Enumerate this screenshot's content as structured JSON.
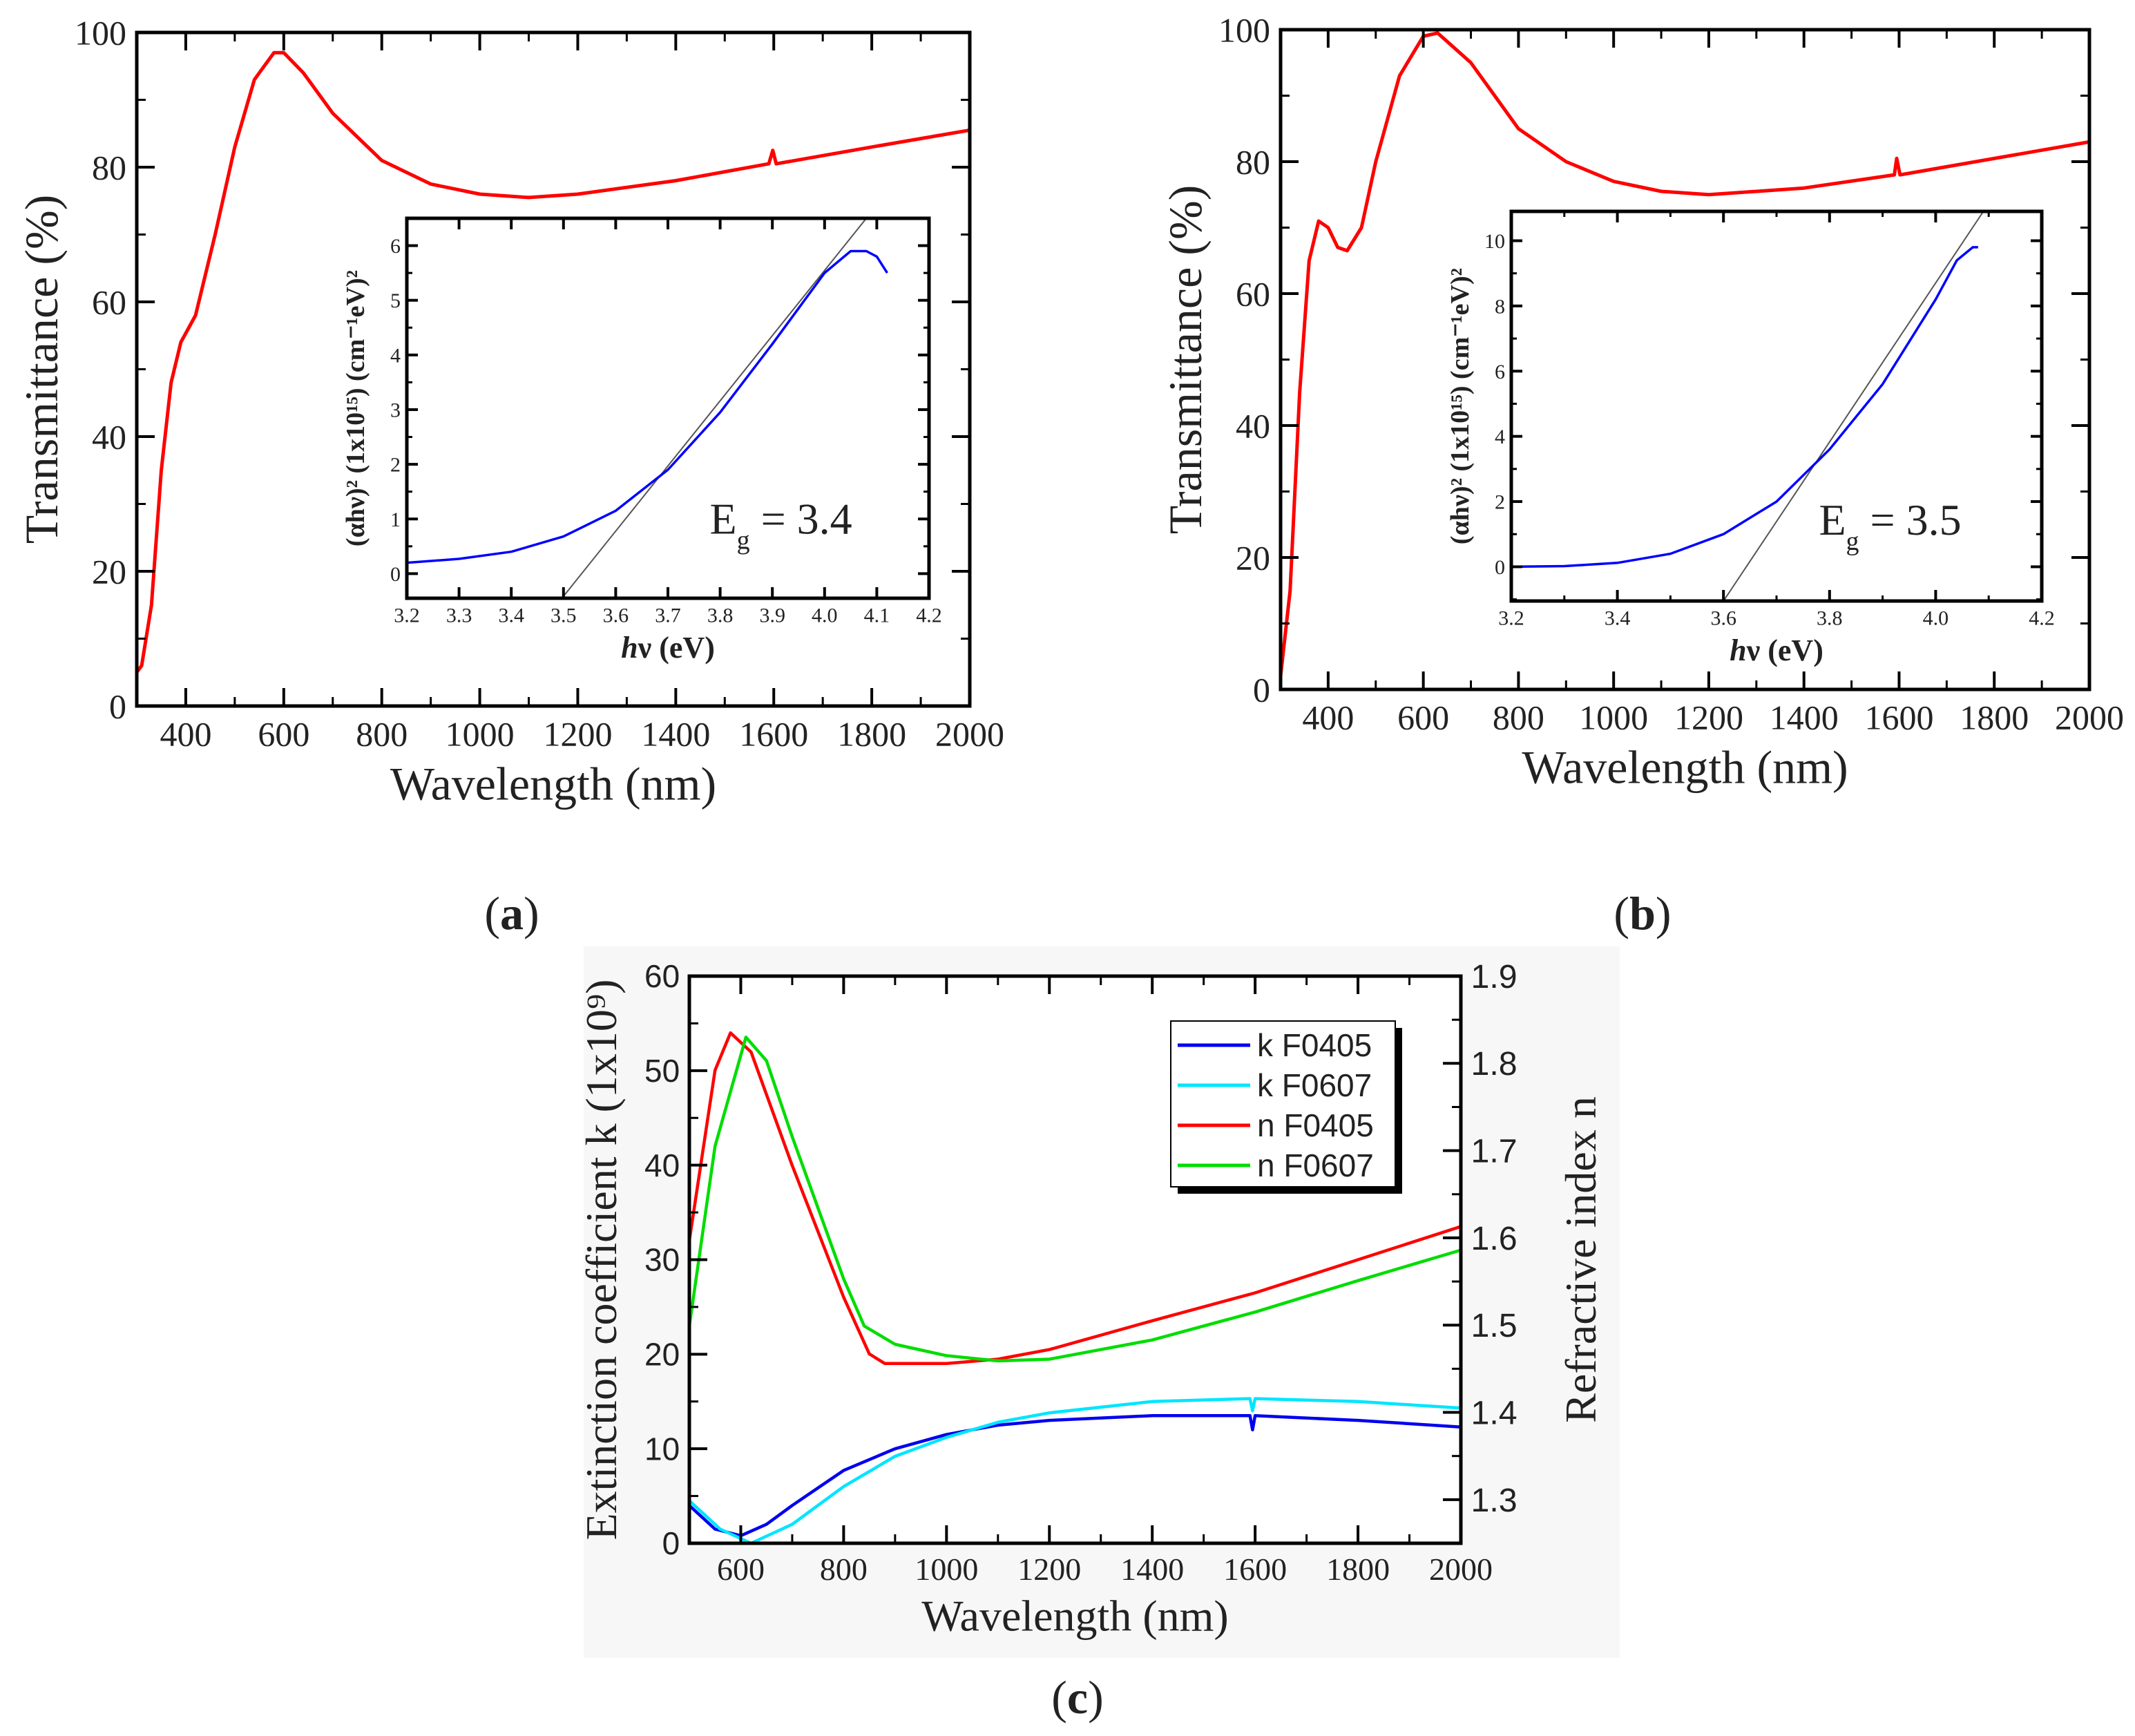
{
  "chart_data": [
    {
      "id": "a",
      "type": "line",
      "panel_label": "a",
      "xlabel": "Wavelength (nm)",
      "ylabel": "Transmittance (%)",
      "xlim": [
        300,
        2000
      ],
      "ylim": [
        0,
        100
      ],
      "xticks": [
        400,
        600,
        800,
        1000,
        1200,
        1400,
        1600,
        1800,
        2000
      ],
      "yticks": [
        0,
        20,
        40,
        60,
        80,
        100
      ],
      "series": [
        {
          "name": "Transmittance",
          "color": "#ff0000",
          "x": [
            300,
            310,
            330,
            350,
            370,
            390,
            420,
            460,
            500,
            540,
            580,
            600,
            640,
            700,
            800,
            900,
            1000,
            1100,
            1200,
            1400,
            1590,
            1598,
            1605,
            1800,
            2000
          ],
          "y": [
            5,
            6,
            15,
            35,
            48,
            54,
            58,
            70,
            83,
            93,
            97,
            97,
            94,
            88,
            81,
            77.5,
            76,
            75.5,
            76,
            78,
            80.5,
            82.5,
            80.5,
            83,
            85.5
          ]
        }
      ],
      "inset": {
        "type": "line",
        "xlabel_italic": "h",
        "xlabel_rest": "ν (eV)",
        "ylabel": "(αhν)² (1x10¹⁵) (cm⁻¹eV)²",
        "xlim": [
          3.2,
          4.2
        ],
        "ylim": [
          -0.45,
          6.5
        ],
        "xticks": [
          3.2,
          3.3,
          3.4,
          3.5,
          3.6,
          3.7,
          3.8,
          3.9,
          4.0,
          4.1,
          4.2
        ],
        "yticks": [
          0,
          1,
          2,
          3,
          4,
          5,
          6
        ],
        "series": [
          {
            "name": "(αhν)²",
            "color": "#0000ff",
            "x": [
              3.2,
              3.3,
              3.4,
              3.5,
              3.6,
              3.7,
              3.8,
              3.9,
              4.0,
              4.05,
              4.08,
              4.1,
              4.12
            ],
            "y": [
              0.2,
              0.27,
              0.4,
              0.68,
              1.15,
              1.9,
              2.95,
              4.2,
              5.5,
              5.9,
              5.9,
              5.8,
              5.5
            ]
          }
        ],
        "fit_line": {
          "color": "#555555",
          "x": [
            3.497,
            4.08
          ],
          "y": [
            -0.45,
            6.5
          ]
        },
        "eg": {
          "symbol": "E",
          "sub": "g",
          "value": " = 3.4"
        }
      }
    },
    {
      "id": "b",
      "type": "line",
      "panel_label": "b",
      "xlabel": "Wavelength (nm)",
      "ylabel": "Transmittance (%)",
      "xlim": [
        300,
        2000
      ],
      "ylim": [
        0,
        100
      ],
      "xticks": [
        400,
        600,
        800,
        1000,
        1200,
        1400,
        1600,
        1800,
        2000
      ],
      "yticks": [
        0,
        20,
        40,
        60,
        80,
        100
      ],
      "series": [
        {
          "name": "Transmittance",
          "color": "#ff0000",
          "x": [
            300,
            320,
            340,
            360,
            380,
            400,
            420,
            440,
            470,
            500,
            550,
            600,
            630,
            700,
            800,
            900,
            1000,
            1100,
            1200,
            1400,
            1590,
            1595,
            1602,
            2000
          ],
          "y": [
            2,
            15,
            45,
            65,
            71,
            70,
            67,
            66.5,
            70,
            80,
            93,
            99,
            99.5,
            95,
            85,
            80,
            77,
            75.5,
            75,
            76,
            78,
            80.5,
            78,
            83
          ]
        }
      ],
      "inset": {
        "type": "line",
        "xlabel_italic": "h",
        "xlabel_rest": "ν (eV)",
        "ylabel": "(αhν)² (1x10¹⁵) (cm⁻¹eV)²",
        "xlim": [
          3.2,
          4.2
        ],
        "ylim": [
          -1.05,
          10.9
        ],
        "xticks": [
          3.2,
          3.4,
          3.6,
          3.8,
          4.0,
          4.2
        ],
        "yticks": [
          0,
          2,
          4,
          6,
          8,
          10
        ],
        "series": [
          {
            "name": "(αhν)²",
            "color": "#0000ff",
            "x": [
              3.2,
              3.3,
              3.4,
              3.5,
              3.6,
              3.7,
              3.8,
              3.9,
              4.0,
              4.04,
              4.07,
              4.08
            ],
            "y": [
              0,
              0.02,
              0.12,
              0.4,
              1.0,
              2.0,
              3.6,
              5.6,
              8.2,
              9.4,
              9.8,
              9.8
            ]
          }
        ],
        "fit_line": {
          "color": "#555555",
          "x": [
            3.6,
            4.09
          ],
          "y": [
            -1.05,
            10.9
          ]
        },
        "eg": {
          "symbol": "E",
          "sub": "g",
          "value": " = 3.5"
        }
      }
    },
    {
      "id": "c",
      "type": "line",
      "panel_label": "c",
      "xlabel": "Wavelength (nm)",
      "ylabel": "Extinction coefficient k (1x10⁹)",
      "y2label": "Refractive index n",
      "xlim": [
        500,
        2000
      ],
      "ylim": [
        0,
        60
      ],
      "y2lim": [
        1.25,
        1.9
      ],
      "xticks": [
        600,
        800,
        1000,
        1200,
        1400,
        1600,
        1800,
        2000
      ],
      "yticks": [
        0,
        10,
        20,
        30,
        40,
        50,
        60
      ],
      "y2ticks": [
        1.3,
        1.4,
        1.5,
        1.6,
        1.7,
        1.8,
        1.9
      ],
      "legend_position": "top-right",
      "series": [
        {
          "name": "k F0405",
          "axis": "left",
          "color": "#0000ee",
          "x": [
            500,
            550,
            600,
            650,
            700,
            800,
            900,
            1000,
            1100,
            1200,
            1400,
            1590,
            1595,
            1600,
            1800,
            2000
          ],
          "y": [
            4,
            1.5,
            0.8,
            2,
            4,
            7.7,
            10,
            11.5,
            12.5,
            13,
            13.5,
            13.5,
            12,
            13.5,
            13,
            12.3
          ]
        },
        {
          "name": "k F0607",
          "axis": "left",
          "color": "#00e5ff",
          "x": [
            500,
            560,
            620,
            700,
            800,
            900,
            1000,
            1100,
            1200,
            1400,
            1590,
            1595,
            1600,
            1800,
            2000
          ],
          "y": [
            4.5,
            1.5,
            0,
            2,
            6,
            9.2,
            11.2,
            12.8,
            13.8,
            15,
            15.3,
            14,
            15.3,
            15,
            14.3
          ]
        },
        {
          "name": "n F0405",
          "axis": "right",
          "color": "#ff0000",
          "x": [
            500,
            550,
            580,
            620,
            700,
            800,
            850,
            880,
            1000,
            1100,
            1200,
            1400,
            1600,
            1800,
            2000
          ],
          "y": [
            1.597,
            1.792,
            1.835,
            1.813,
            1.683,
            1.532,
            1.467,
            1.456,
            1.456,
            1.461,
            1.472,
            1.505,
            1.537,
            1.575,
            1.613
          ]
        },
        {
          "name": "n F0607",
          "axis": "right",
          "color": "#00dd00",
          "x": [
            500,
            550,
            610,
            650,
            700,
            800,
            840,
            900,
            1000,
            1100,
            1200,
            1400,
            1600,
            1800,
            2000
          ],
          "y": [
            1.499,
            1.705,
            1.83,
            1.803,
            1.716,
            1.553,
            1.499,
            1.478,
            1.465,
            1.459,
            1.461,
            1.483,
            1.515,
            1.551,
            1.586
          ]
        }
      ]
    }
  ]
}
